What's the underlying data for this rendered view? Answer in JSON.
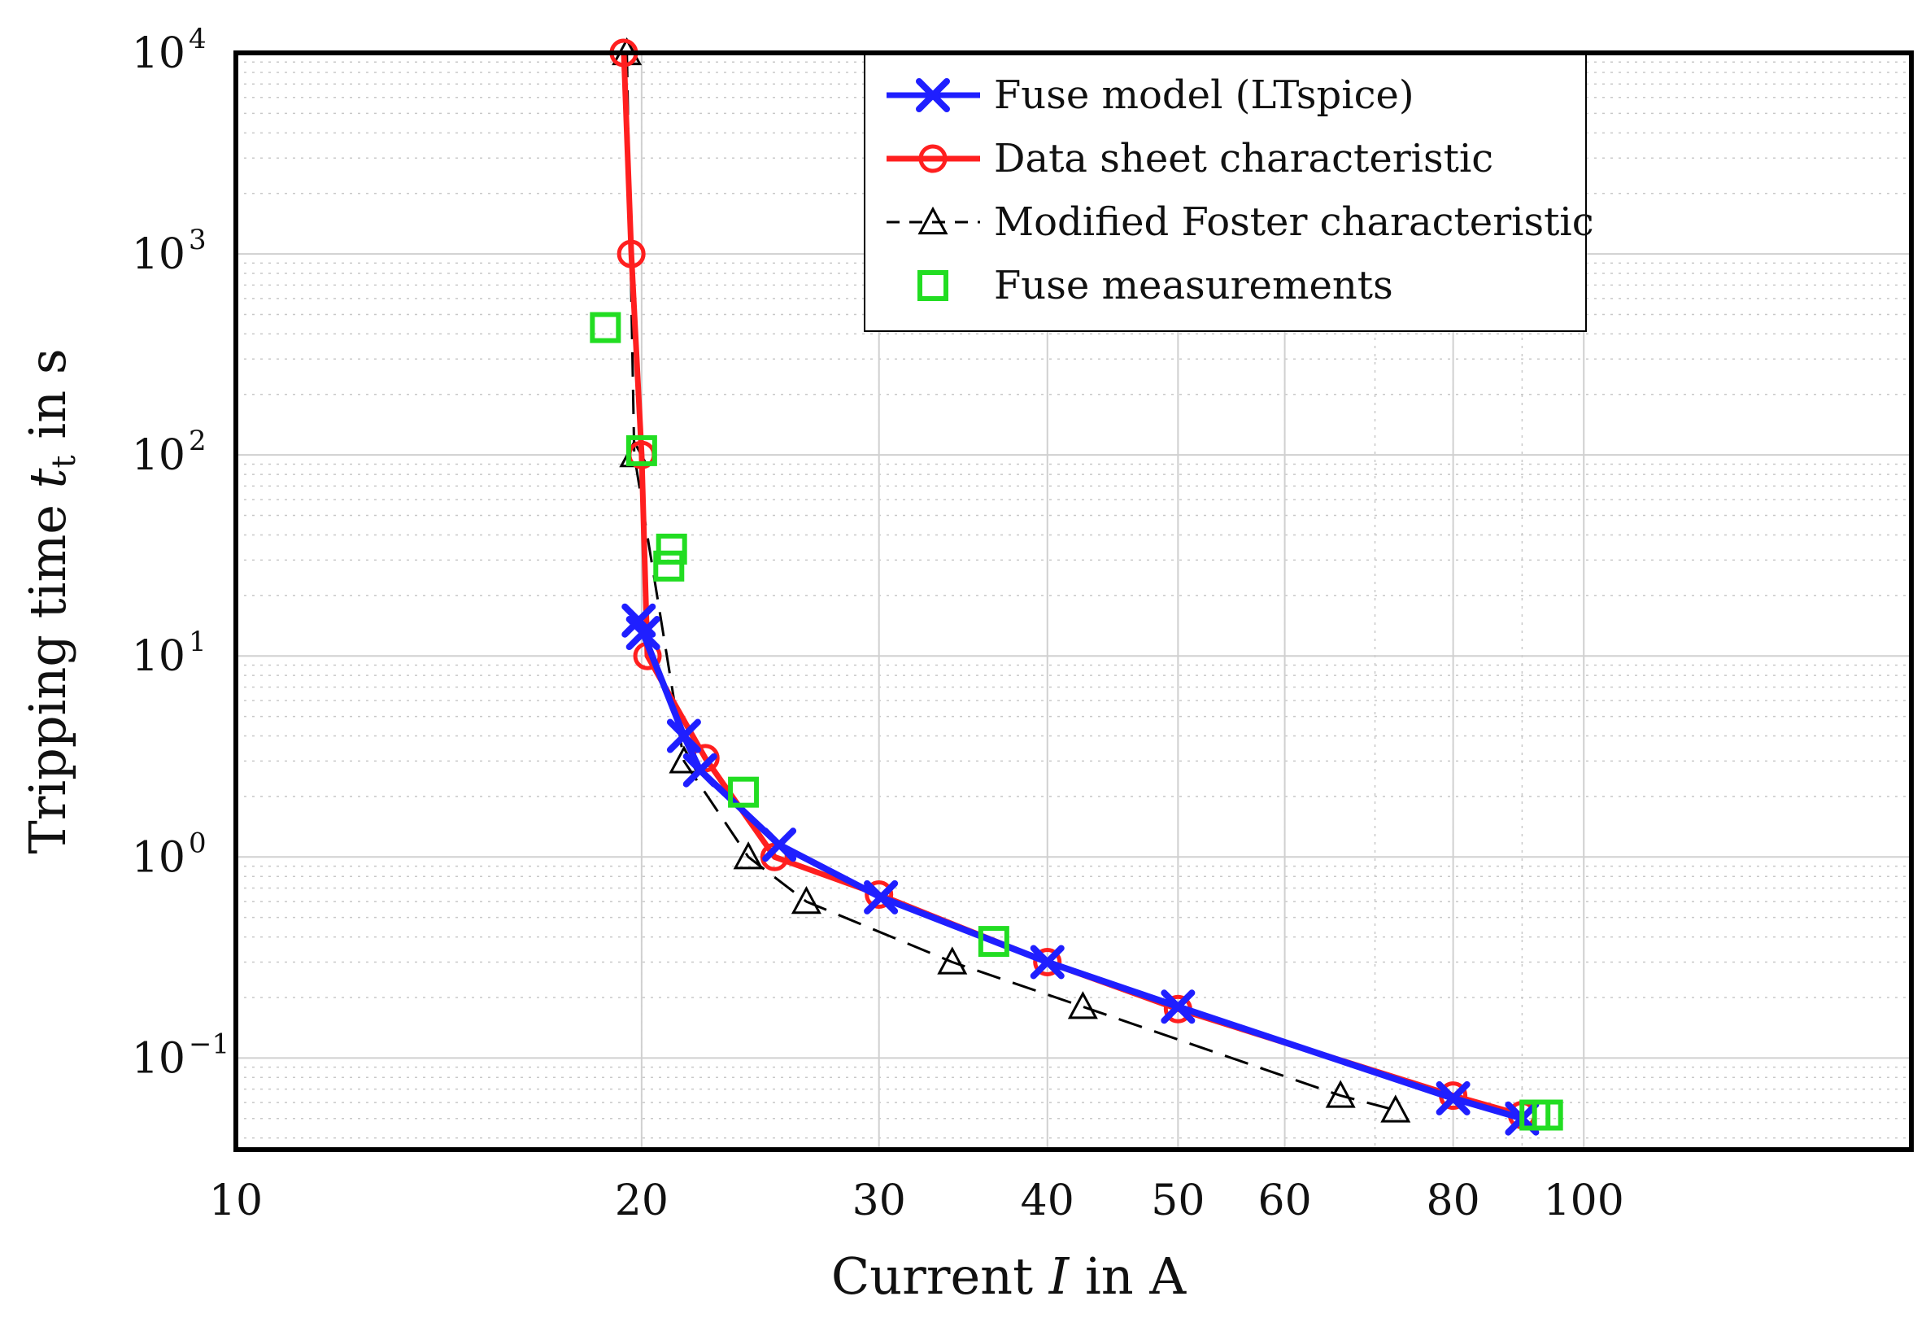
{
  "chart_data": {
    "type": "line",
    "xscale": "log",
    "yscale": "log",
    "xlim": [
      10,
      175
    ],
    "ylim": [
      0.035,
      10000
    ],
    "xlabel": "Current",
    "xlabel_symbol": "I",
    "xlabel_unit": "in A",
    "ylabel": "Tripping time",
    "ylabel_symbol": "t",
    "ylabel_subscript": "t",
    "ylabel_unit": "in s",
    "xticks": [
      10,
      20,
      30,
      40,
      50,
      60,
      80,
      100
    ],
    "xtick_labels": [
      "10",
      "20",
      "30",
      "40",
      "50",
      "60",
      "80",
      "100"
    ],
    "yticks": [
      0.1,
      1,
      10,
      100,
      1000,
      10000
    ],
    "ytick_base": "10",
    "ytick_exponents": [
      "−1",
      "0",
      "1",
      "2",
      "3",
      "4"
    ],
    "grid": "major and minor",
    "legend_position": "top-right",
    "series": [
      {
        "name": "Fuse model (LTspice)",
        "color": "#1f1fff",
        "marker": "x",
        "line": "solid",
        "x": [
          19.9,
          20.05,
          21.5,
          22.1,
          25.3,
          30.1,
          40.0,
          50.0,
          80.0,
          90.0
        ],
        "y": [
          15,
          13,
          4,
          2.7,
          1.15,
          0.63,
          0.3,
          0.18,
          0.063,
          0.05
        ]
      },
      {
        "name": "Data sheet characteristic",
        "color": "#ff1f1f",
        "marker": "o",
        "line": "solid",
        "x": [
          19.4,
          19.65,
          20.0,
          20.2,
          22.3,
          25.1,
          30.0,
          40.0,
          50.0,
          80.0,
          90.0
        ],
        "y": [
          10000,
          1000,
          100,
          10,
          3.1,
          1.0,
          0.65,
          0.3,
          0.175,
          0.065,
          0.052
        ]
      },
      {
        "name": "Modified Foster characteristic",
        "color": "#000000",
        "marker": "triangle",
        "line": "dashed",
        "x": [
          19.5,
          19.75,
          21.5,
          24.0,
          26.5,
          34.0,
          42.5,
          66.0,
          72.5
        ],
        "y": [
          10000,
          100,
          3.0,
          1.0,
          0.6,
          0.3,
          0.18,
          0.065,
          0.055
        ]
      },
      {
        "name": "Fuse measurements",
        "color": "#22dd22",
        "marker": "square",
        "line": "none",
        "x": [
          18.8,
          20.0,
          20.95,
          21.05,
          23.8,
          36.5,
          92.0,
          94.0
        ],
        "y": [
          430,
          105,
          28,
          34,
          2.1,
          0.38,
          0.052,
          0.052
        ]
      }
    ]
  }
}
